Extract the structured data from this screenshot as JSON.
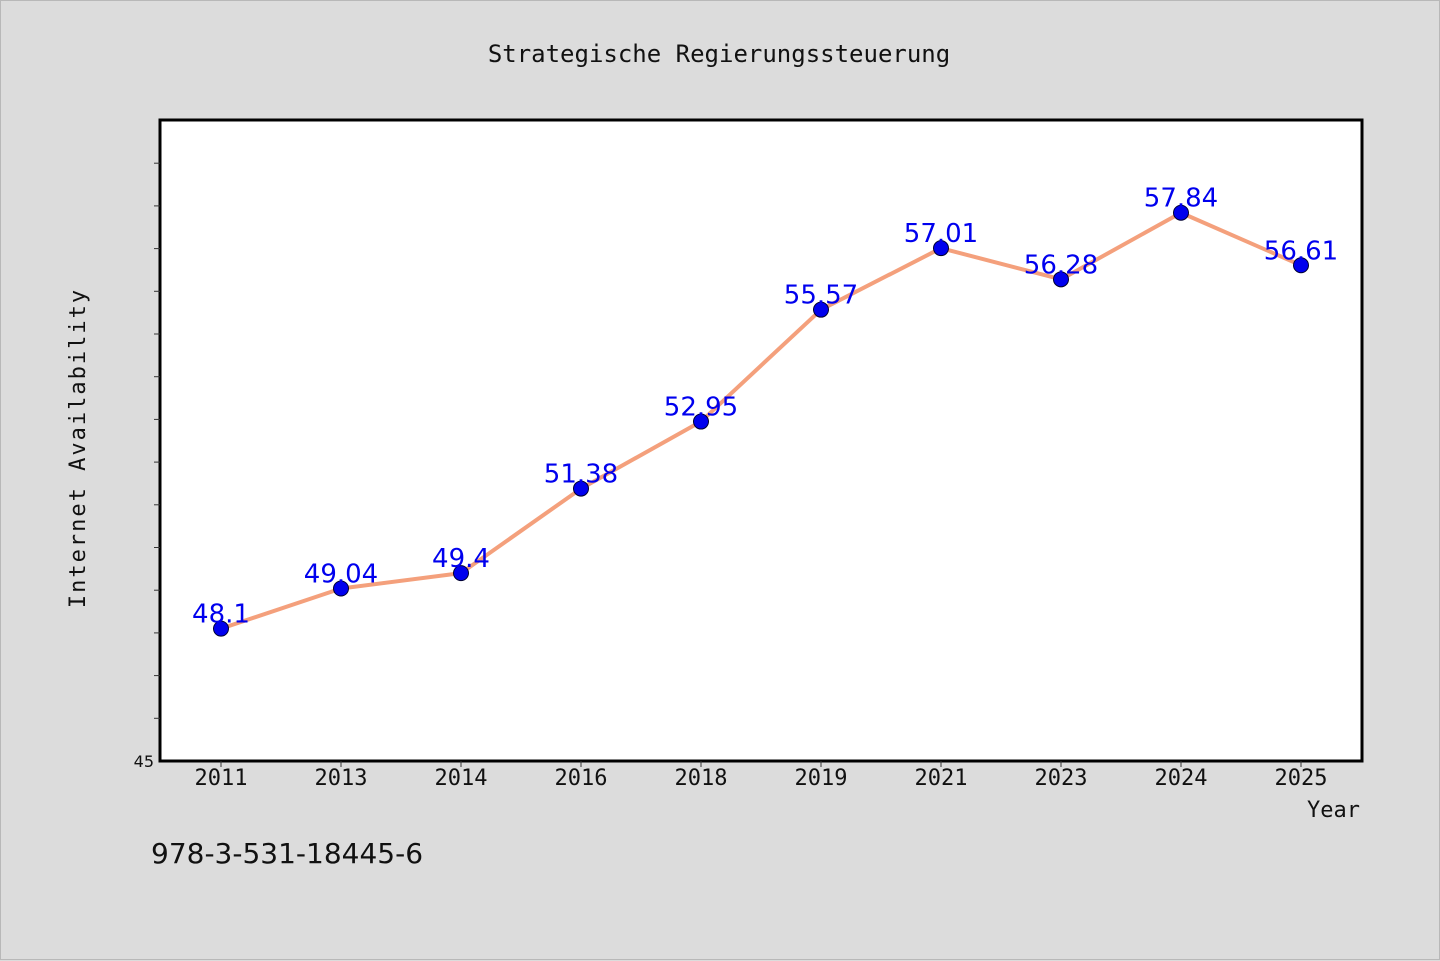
{
  "chart_data": {
    "type": "line",
    "title": "Strategische Regierungssteuerung",
    "xlabel": "Year",
    "ylabel": "Internet Availability",
    "categories": [
      "2011",
      "2013",
      "2014",
      "2016",
      "2018",
      "2019",
      "2021",
      "2023",
      "2024",
      "2025"
    ],
    "series": [
      {
        "values": [
          48.1,
          49.04,
          49.4,
          51.38,
          52.95,
          55.57,
          57.01,
          56.28,
          57.84,
          56.61
        ],
        "labels": [
          "48.1",
          "49.04",
          "49.4",
          "51.38",
          "52.95",
          "55.57",
          "57.01",
          "56.28",
          "57.84",
          "56.61"
        ],
        "line_color": "#f4a07c",
        "marker_color": "#0000ee",
        "label_color": "#0000ee"
      }
    ],
    "ylim": [
      45,
      60
    ],
    "yticks_labeled": [
      "45"
    ],
    "grid": false,
    "legend": "none"
  },
  "footer_text": "978-3-531-18445-6"
}
